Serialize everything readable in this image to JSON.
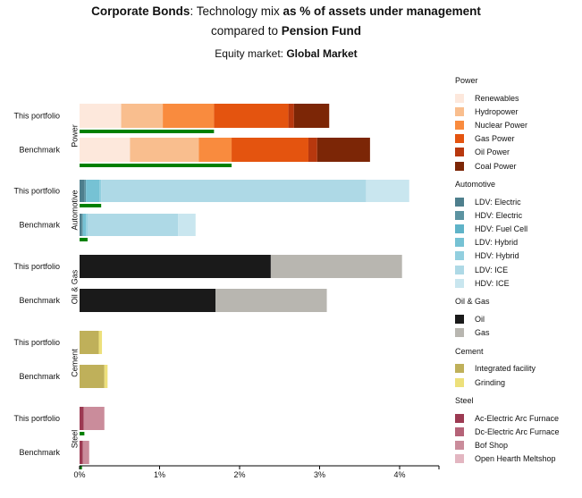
{
  "title": {
    "prefix_bold": "Corporate Bonds",
    "part1": ": Technology mix ",
    "part2_bold": "as % of assets under management",
    "part3": "compared to ",
    "part4_bold": "Pension Fund"
  },
  "subtitle": {
    "label": "Equity market: ",
    "value": "Global Market"
  },
  "chart_data": {
    "type": "bar",
    "orientation": "horizontal",
    "stacked": true,
    "x_ticks": [
      "0%",
      "1%",
      "2%",
      "3%",
      "4%"
    ],
    "xlim": [
      0,
      4.5
    ],
    "row_labels": [
      "This portfolio",
      "Benchmark"
    ],
    "sectors": [
      {
        "name": "Power",
        "technologies": [
          {
            "name": "Renewables",
            "color": "#fde8dc"
          },
          {
            "name": "Hydropower",
            "color": "#f9be8e"
          },
          {
            "name": "Nuclear Power",
            "color": "#f98b3e"
          },
          {
            "name": "Gas Power",
            "color": "#e4540f"
          },
          {
            "name": "Oil Power",
            "color": "#b8380e"
          },
          {
            "name": "Coal Power",
            "color": "#7c2606"
          }
        ],
        "rows": [
          {
            "label": "This portfolio",
            "values": [
              0.52,
              0.52,
              0.64,
              0.93,
              0.07,
              0.44
            ],
            "green_share": 1.68
          },
          {
            "label": "Benchmark",
            "values": [
              0.63,
              0.86,
              0.41,
              0.96,
              0.11,
              0.66
            ],
            "green_share": 1.9
          }
        ]
      },
      {
        "name": "Automotive",
        "technologies": [
          {
            "name": "LDV: Electric",
            "color": "#4e7f8d"
          },
          {
            "name": "HDV: Electric",
            "color": "#5c93a1"
          },
          {
            "name": "HDV: Fuel Cell",
            "color": "#5fb3c8"
          },
          {
            "name": "LDV: Hybrid",
            "color": "#76c2d4"
          },
          {
            "name": "HDV: Hybrid",
            "color": "#92cfdf"
          },
          {
            "name": "LDV: ICE",
            "color": "#aed9e6"
          },
          {
            "name": "HDV: ICE",
            "color": "#c9e6ef"
          }
        ],
        "rows": [
          {
            "label": "This portfolio",
            "values": [
              0.06,
              0.02,
              0.0,
              0.17,
              0.02,
              3.31,
              0.54
            ],
            "green_share": 0.27
          },
          {
            "label": "Benchmark",
            "values": [
              0.03,
              0.01,
              0.0,
              0.04,
              0.02,
              1.13,
              0.22
            ],
            "green_share": 0.1
          }
        ]
      },
      {
        "name": "Oil & Gas",
        "technologies": [
          {
            "name": "Oil",
            "color": "#1a1a1a"
          },
          {
            "name": "Gas",
            "color": "#b8b6b0"
          }
        ],
        "rows": [
          {
            "label": "This portfolio",
            "values": [
              2.39,
              1.64
            ],
            "green_share": 0
          },
          {
            "label": "Benchmark",
            "values": [
              1.7,
              1.39
            ],
            "green_share": 0
          }
        ]
      },
      {
        "name": "Cement",
        "technologies": [
          {
            "name": "Integrated facility",
            "color": "#bfb05a"
          },
          {
            "name": "Grinding",
            "color": "#ede07b"
          }
        ],
        "rows": [
          {
            "label": "This portfolio",
            "values": [
              0.24,
              0.04
            ],
            "green_share": 0
          },
          {
            "label": "Benchmark",
            "values": [
              0.31,
              0.04
            ],
            "green_share": 0
          }
        ]
      },
      {
        "name": "Steel",
        "technologies": [
          {
            "name": "Ac-Electric Arc Furnace",
            "color": "#9c3a52"
          },
          {
            "name": "Dc-Electric Arc Furnace",
            "color": "#b56378"
          },
          {
            "name": "Bof Shop",
            "color": "#ca8c9b"
          },
          {
            "name": "Open Hearth Meltshop",
            "color": "#e3b6c1"
          }
        ],
        "rows": [
          {
            "label": "This portfolio",
            "values": [
              0.05,
              0.0,
              0.26,
              0.0
            ],
            "green_share": 0.06
          },
          {
            "label": "Benchmark",
            "values": [
              0.04,
              0.0,
              0.08,
              0.0
            ],
            "green_share": 0.03
          }
        ]
      }
    ],
    "green_bar_color": "#008000",
    "legend_position": "right"
  }
}
